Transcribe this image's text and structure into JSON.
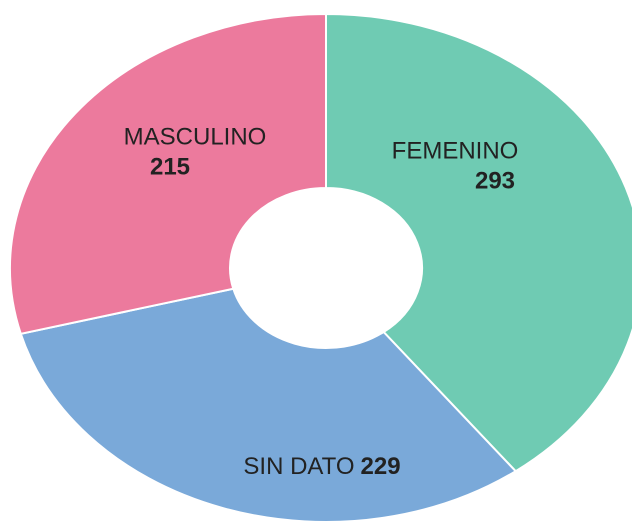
{
  "chart_data": {
    "type": "pie",
    "donut": true,
    "categories": [
      "FEMENINO",
      "SIN DATO",
      "MASCULINO"
    ],
    "values": [
      293,
      229,
      215
    ],
    "colors": [
      "#6fcbb3",
      "#7aa9d9",
      "#ec7a9d"
    ]
  }
}
